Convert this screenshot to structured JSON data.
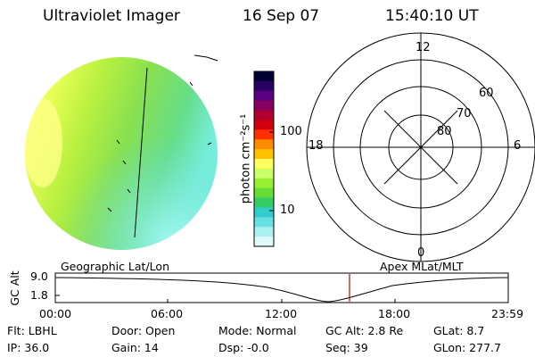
{
  "header": {
    "instrument": "Ultraviolet Imager",
    "date": "16 Sep 07",
    "time": "15:40:10 UT"
  },
  "colorbar": {
    "unit_label": "photon cm⁻²s⁻¹",
    "tick_labels": [
      "100",
      "10"
    ],
    "colors": [
      "#000033",
      "#2a0060",
      "#5a0080",
      "#8a0060",
      "#b00030",
      "#d00010",
      "#ff3000",
      "#ff8c00",
      "#ffc000",
      "#ffff60",
      "#ccff66",
      "#99ee33",
      "#66dd33",
      "#33cc66",
      "#33cccc",
      "#66e0e0",
      "#aaf0f0",
      "#e0fafa"
    ]
  },
  "polar_plot": {
    "mlt_labels": [
      "12",
      "18",
      "6",
      "0"
    ],
    "mlat_labels": [
      "60",
      "70",
      "80"
    ]
  },
  "orbit_panel": {
    "left_title": "Geographic Lat/Lon",
    "right_title": "Apex MLat/MLT",
    "ylabel": "GC Alt",
    "y_ticks": [
      "9.0",
      "1.8"
    ],
    "x_ticks": [
      "00:00",
      "06:00",
      "12:00",
      "18:00",
      "23:59"
    ],
    "marker_color": "#cc0000"
  },
  "info": {
    "flt": "Flt: LBHL",
    "ip": "IP: 36.0",
    "door": "Door: Open",
    "gain": "Gain: 14",
    "mode": "Mode: Normal",
    "dsp": "Dsp:    -0.0",
    "gc_alt": "GC Alt: 2.8 Re",
    "seq": "Seq: 39",
    "glat": "GLat:    8.7",
    "glon": "GLon: 277.7"
  }
}
